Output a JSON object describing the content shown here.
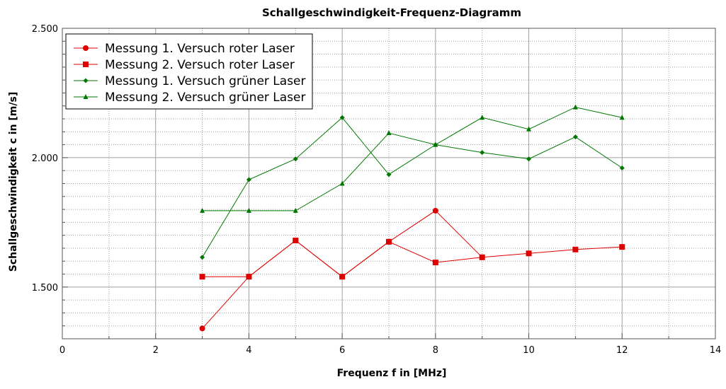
{
  "chart_data": {
    "type": "line",
    "title": "Schallgeschwindigkeit-Frequenz-Diagramm",
    "xlabel": "Frequenz f in [MHz]",
    "ylabel": "Schallgeschwindigkeit c in [m/s]",
    "xlim": [
      0,
      14
    ],
    "ylim": [
      1300,
      2500
    ],
    "x_ticks": [
      0,
      2,
      4,
      6,
      8,
      10,
      12,
      14
    ],
    "x_tick_labels": [
      "0",
      "2",
      "4",
      "6",
      "8",
      "10",
      "12",
      "14"
    ],
    "y_ticks": [
      1500,
      2000,
      2500
    ],
    "y_tick_labels": [
      "1.500",
      "2.000",
      "2.500"
    ],
    "grid": true,
    "legend_position": "top-left",
    "series": [
      {
        "name": "Messung 1. Versuch roter Laser",
        "color": "#dd0000",
        "marker": "circle",
        "points": [
          [
            3,
            1340
          ],
          [
            4,
            1540
          ],
          [
            5,
            1680
          ],
          [
            6,
            1540
          ],
          [
            7,
            1675
          ],
          [
            8,
            1795
          ],
          [
            9,
            1615
          ]
        ]
      },
      {
        "name": "Messung 2. Versuch roter Laser",
        "color": "#dd0000",
        "marker": "square",
        "points": [
          [
            3,
            1540
          ],
          [
            4,
            1540
          ],
          [
            5,
            1680
          ],
          [
            6,
            1540
          ],
          [
            7,
            1675
          ],
          [
            8,
            1595
          ],
          [
            9,
            1615
          ],
          [
            10,
            1630
          ],
          [
            11,
            1645
          ],
          [
            12,
            1655
          ]
        ]
      },
      {
        "name": "Messung 1. Versuch grüner Laser",
        "color": "#007700",
        "marker": "diamond",
        "points": [
          [
            3,
            1615
          ],
          [
            4,
            1915
          ],
          [
            5,
            1995
          ],
          [
            6,
            2155
          ],
          [
            7,
            1935
          ],
          [
            8,
            2050
          ],
          [
            9,
            2020
          ],
          [
            10,
            1995
          ],
          [
            11,
            2080
          ],
          [
            12,
            1960
          ]
        ]
      },
      {
        "name": "Messung 2. Versuch grüner Laser",
        "color": "#007700",
        "marker": "triangle",
        "points": [
          [
            3,
            1795
          ],
          [
            4,
            1795
          ],
          [
            5,
            1795
          ],
          [
            6,
            1900
          ],
          [
            7,
            2095
          ],
          [
            8,
            2050
          ],
          [
            9,
            2155
          ],
          [
            10,
            2110
          ],
          [
            11,
            2195
          ],
          [
            12,
            2155
          ]
        ]
      }
    ]
  }
}
